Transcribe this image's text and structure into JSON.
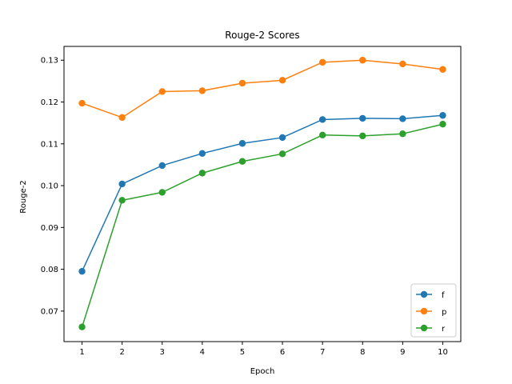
{
  "chart_data": {
    "type": "line",
    "title": "Rouge-2 Scores",
    "xlabel": "Epoch",
    "ylabel": "Rouge-2",
    "x": [
      1,
      2,
      3,
      4,
      5,
      6,
      7,
      8,
      9,
      10
    ],
    "xticks": [
      "1",
      "2",
      "3",
      "4",
      "5",
      "6",
      "7",
      "8",
      "9",
      "10"
    ],
    "yticks": [
      "0.07",
      "0.08",
      "0.09",
      "0.10",
      "0.11",
      "0.12",
      "0.13"
    ],
    "xlim": [
      0.55,
      10.45
    ],
    "ylim": [
      0.0627,
      0.1333
    ],
    "grid": false,
    "legend_position": "lower-right",
    "markers": "circle",
    "series": [
      {
        "name": "f",
        "color": "#1f77b4",
        "values": [
          0.0795,
          0.1004,
          0.1048,
          0.1077,
          0.1101,
          0.1115,
          0.1158,
          0.1161,
          0.116,
          0.1168
        ]
      },
      {
        "name": "p",
        "color": "#ff7f0e",
        "values": [
          0.1197,
          0.1163,
          0.1225,
          0.1227,
          0.1245,
          0.1252,
          0.1295,
          0.13,
          0.1291,
          0.1278
        ]
      },
      {
        "name": "r",
        "color": "#2ca02c",
        "values": [
          0.0662,
          0.0965,
          0.0984,
          0.103,
          0.1058,
          0.1076,
          0.1121,
          0.1119,
          0.1124,
          0.1147
        ]
      }
    ]
  }
}
